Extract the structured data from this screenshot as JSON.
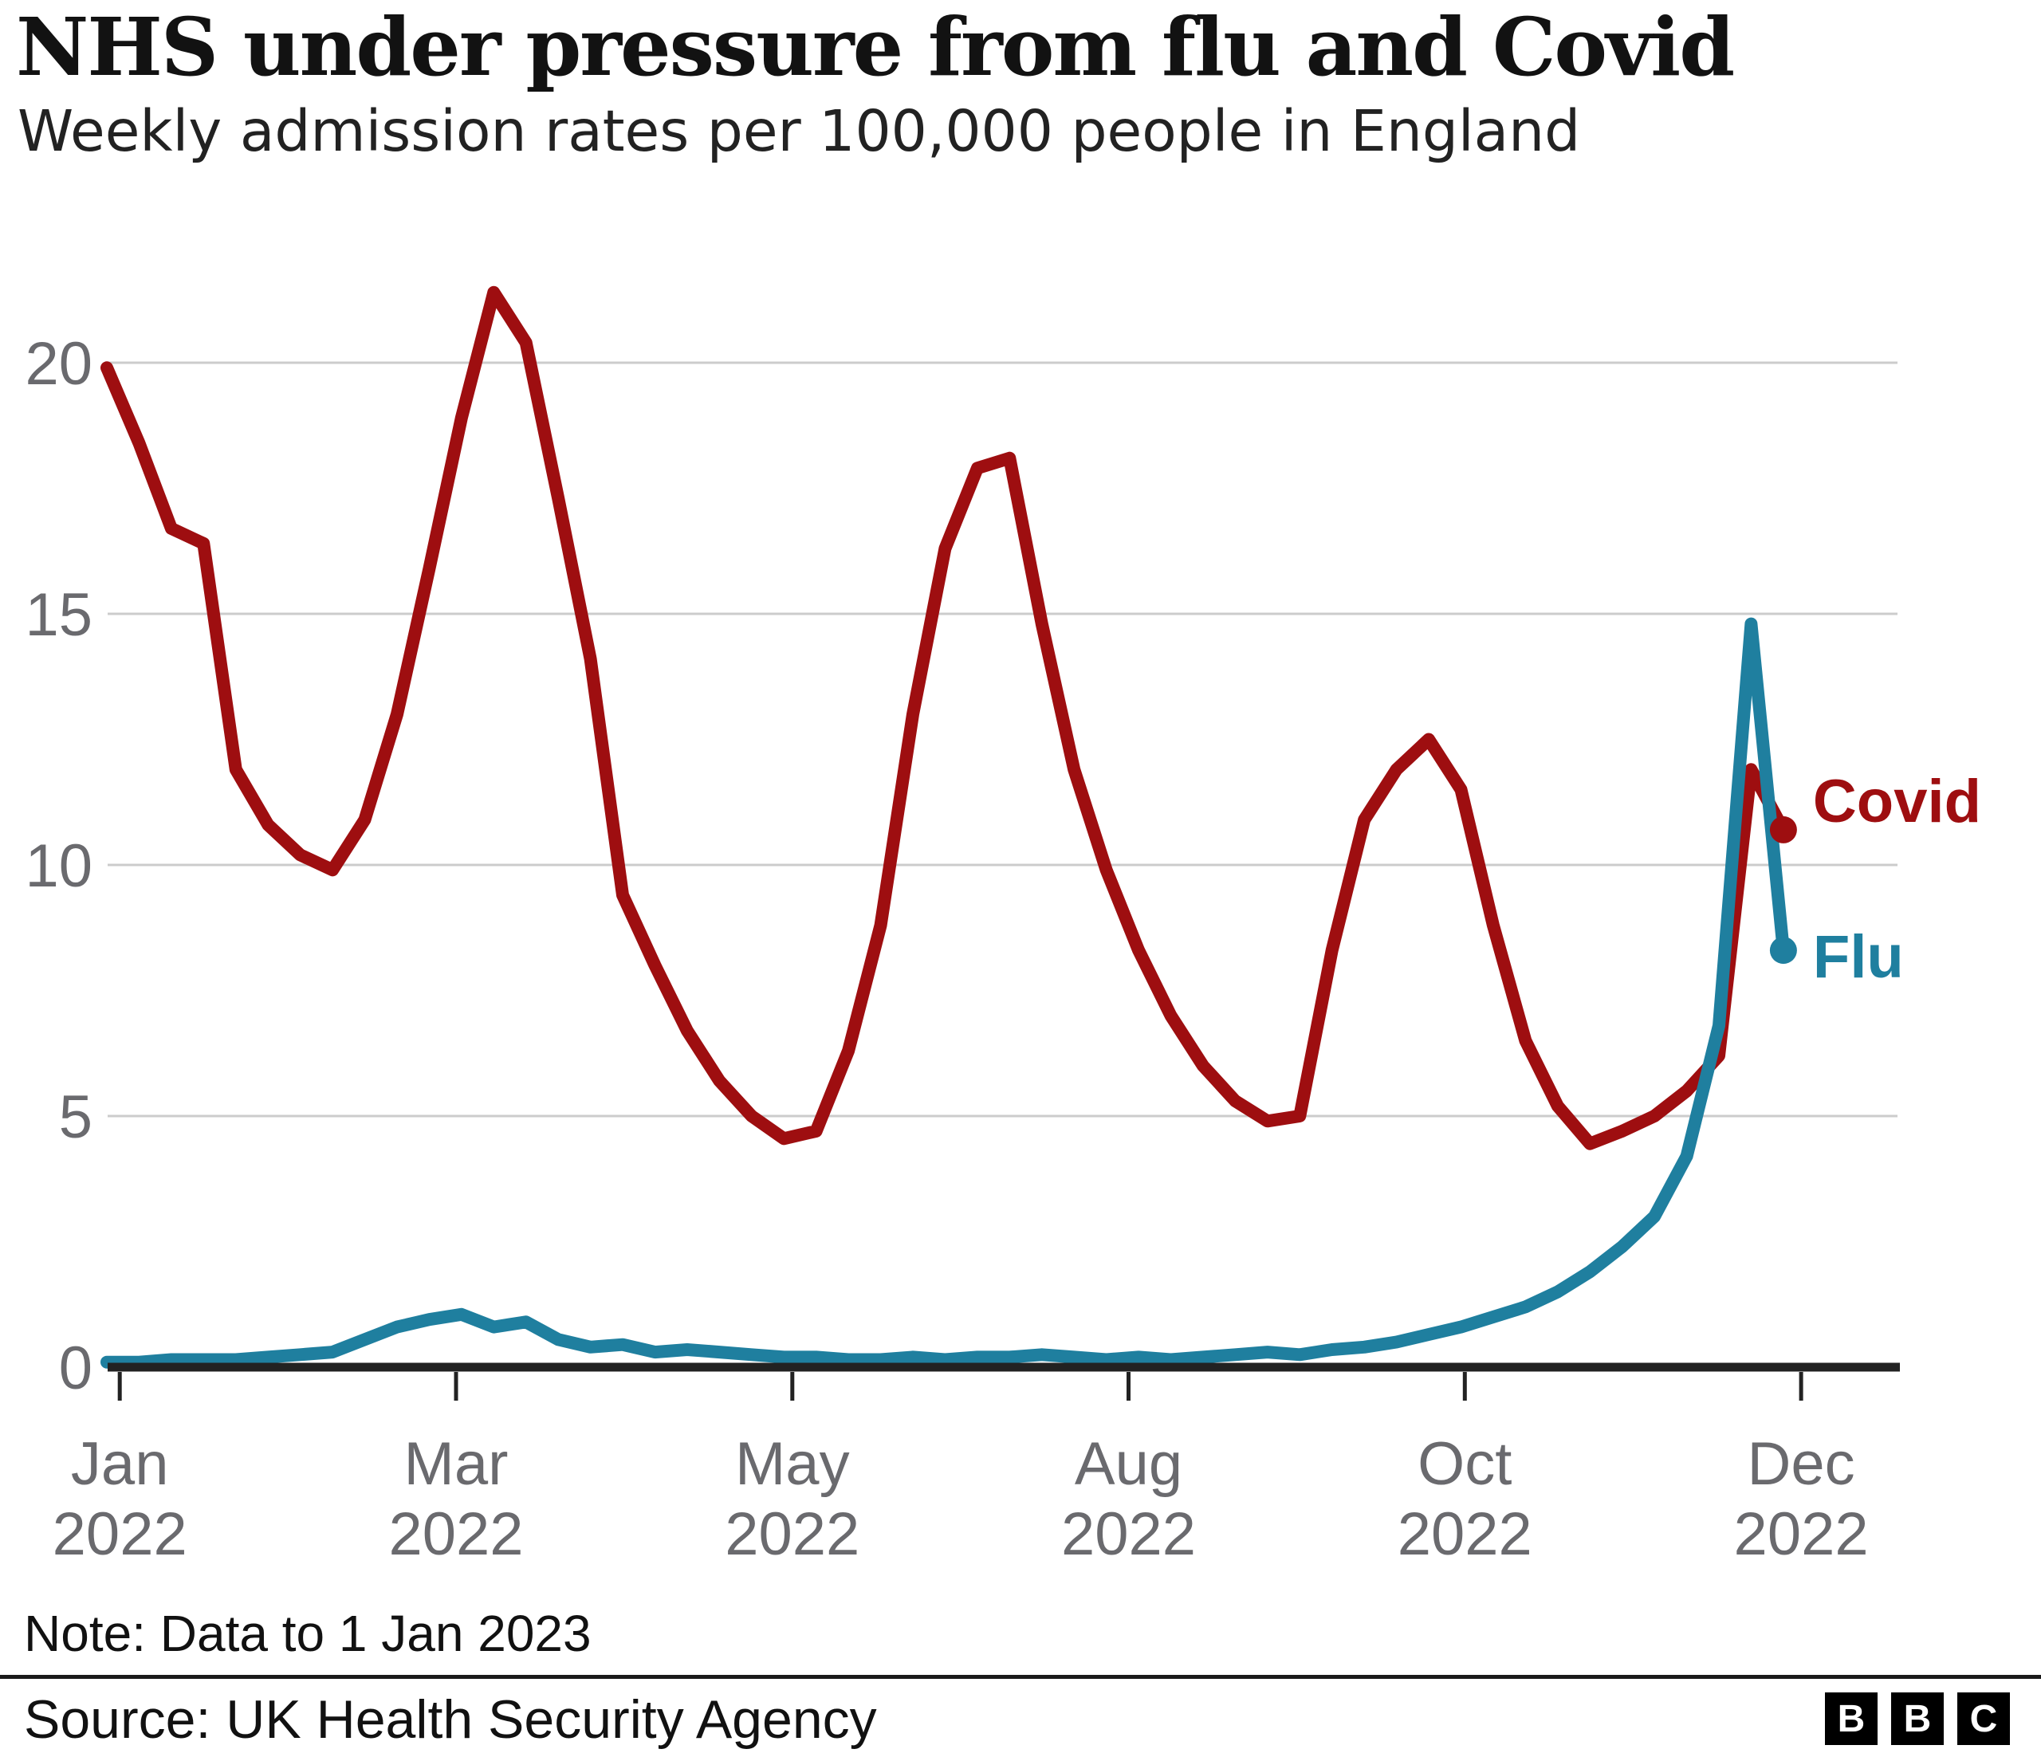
{
  "chart_data": {
    "type": "line",
    "title": "NHS under pressure from flu and Covid",
    "subtitle": "Weekly admission rates per 100,000 people in England",
    "xlabel": "",
    "ylabel": "",
    "ylim": [
      0,
      22
    ],
    "yticks": [
      0,
      5,
      10,
      15,
      20
    ],
    "grid": "horizontal",
    "x_points": 53,
    "x_description": "Weekly admission rates, Jan 2022 to 1 Jan 2023",
    "xticks": [
      {
        "label": "Jan",
        "year": "2022",
        "week": 0.4
      },
      {
        "label": "Mar",
        "year": "2022",
        "week": 10.83
      },
      {
        "label": "May",
        "year": "2022",
        "week": 21.26
      },
      {
        "label": "Aug",
        "year": "2022",
        "week": 31.69
      },
      {
        "label": "Oct",
        "year": "2022",
        "week": 42.12
      },
      {
        "label": "Dec",
        "year": "2022",
        "week": 52.55
      }
    ],
    "series": [
      {
        "name": "Covid",
        "color": "#9e0e10",
        "label_dy": -10,
        "values": [
          19.9,
          18.4,
          16.7,
          16.4,
          11.9,
          10.8,
          10.2,
          9.9,
          10.9,
          13.0,
          15.9,
          18.9,
          21.4,
          20.4,
          17.3,
          14.1,
          9.4,
          8.0,
          6.7,
          5.7,
          5.0,
          4.55,
          4.7,
          6.3,
          8.8,
          13.0,
          16.3,
          17.9,
          18.1,
          14.8,
          11.9,
          9.9,
          8.3,
          7.0,
          6.0,
          5.3,
          4.9,
          5.0,
          8.3,
          10.9,
          11.9,
          12.5,
          11.5,
          8.8,
          6.5,
          5.2,
          4.45,
          4.7,
          5.0,
          5.5,
          6.2,
          11.9,
          10.7
        ]
      },
      {
        "name": "Flu",
        "color": "#1f7f9f",
        "label_dy": 34,
        "values": [
          0.1,
          0.1,
          0.15,
          0.15,
          0.15,
          0.2,
          0.25,
          0.3,
          0.55,
          0.8,
          0.95,
          1.05,
          0.8,
          0.9,
          0.55,
          0.4,
          0.45,
          0.3,
          0.35,
          0.3,
          0.25,
          0.2,
          0.2,
          0.15,
          0.15,
          0.2,
          0.15,
          0.2,
          0.2,
          0.25,
          0.2,
          0.15,
          0.2,
          0.15,
          0.2,
          0.25,
          0.3,
          0.25,
          0.35,
          0.4,
          0.5,
          0.65,
          0.8,
          1.0,
          1.2,
          1.5,
          1.9,
          2.4,
          3.0,
          4.2,
          6.8,
          14.8,
          8.3
        ]
      }
    ]
  },
  "footer": {
    "note": "Note: Data to 1 Jan 2023",
    "source": "Source: UK Health Security Agency",
    "logo_letters": [
      "B",
      "B",
      "C"
    ]
  },
  "colors": {
    "covid": "#9e0e10",
    "flu": "#1f7f9f",
    "gridline": "#cccccc",
    "axis": "#222222",
    "tick_label": "#6a6a6e",
    "title": "#121212",
    "subtitle": "#222222"
  }
}
